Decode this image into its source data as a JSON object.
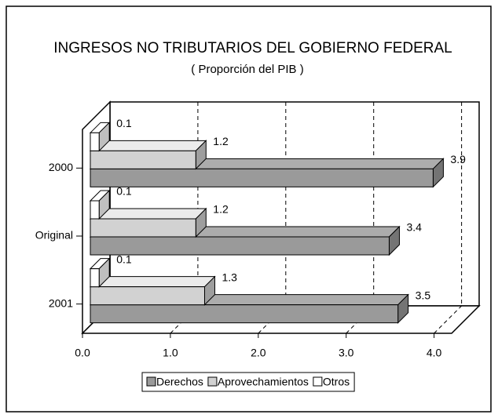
{
  "chart_data": {
    "type": "bar3d_horizontal",
    "title": "INGRESOS NO TRIBUTARIOS DEL GOBIERNO FEDERAL",
    "subtitle": "( Proporción del PIB )",
    "categories": [
      "2000",
      "Original",
      "2001"
    ],
    "series": [
      {
        "name": "Derechos",
        "color": "#9a9a9a",
        "values": [
          3.9,
          3.4,
          3.5
        ]
      },
      {
        "name": "Aprovechamientos",
        "color": "#d2d2d2",
        "values": [
          1.2,
          1.2,
          1.3
        ]
      },
      {
        "name": "Otros",
        "color": "#ffffff",
        "values": [
          0.1,
          0.1,
          0.1
        ]
      }
    ],
    "xlim": [
      0,
      4.2
    ],
    "xticks": [
      {
        "value": 0,
        "label": "0.0"
      },
      {
        "value": 1,
        "label": "1.0"
      },
      {
        "value": 2,
        "label": "2.0"
      },
      {
        "value": 3,
        "label": "3.0"
      },
      {
        "value": 4,
        "label": "4.0"
      }
    ],
    "grid": true,
    "legend": "bottom"
  }
}
